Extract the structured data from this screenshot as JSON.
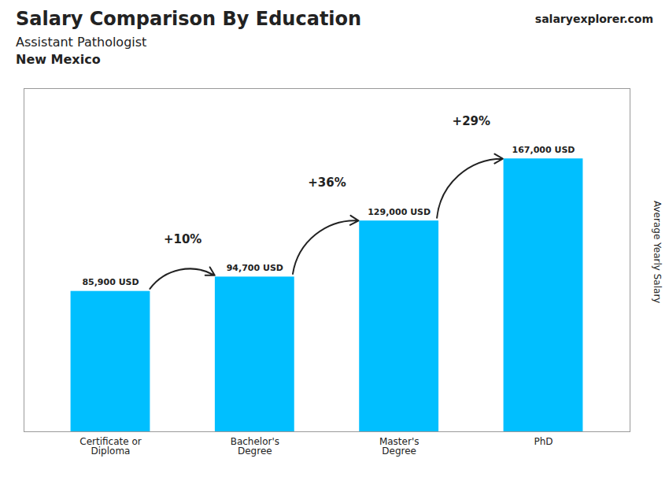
{
  "chart_data": {
    "type": "bar",
    "title": "Salary Comparison By Education",
    "subtitle": [
      "Assistant Pathologist",
      "New Mexico"
    ],
    "ylabel": "Average Yearly Salary",
    "categories": [
      "Certificate or\nDiploma",
      "Bachelor's\nDegree",
      "Master's\nDegree",
      "PhD"
    ],
    "values": [
      85900,
      94700,
      129000,
      167000
    ],
    "value_labels": [
      "85,900 USD",
      "94,700 USD",
      "129,000 USD",
      "167,000 USD"
    ],
    "data_labels": true,
    "color": "#00BFFF",
    "ylim": [
      0,
      210000
    ],
    "tick_labels": "x",
    "grid": false,
    "annotations": [
      {
        "text": "+10%",
        "from": "Certificate or\nDiploma",
        "to": "Bachelor's\nDegree"
      },
      {
        "text": "+36%",
        "from": "Bachelor's\nDegree",
        "to": "Master's\nDegree"
      },
      {
        "text": "+29%",
        "from": "Master's\nDegree",
        "to": "PhD"
      }
    ],
    "caption": "salaryexplorer.com"
  }
}
